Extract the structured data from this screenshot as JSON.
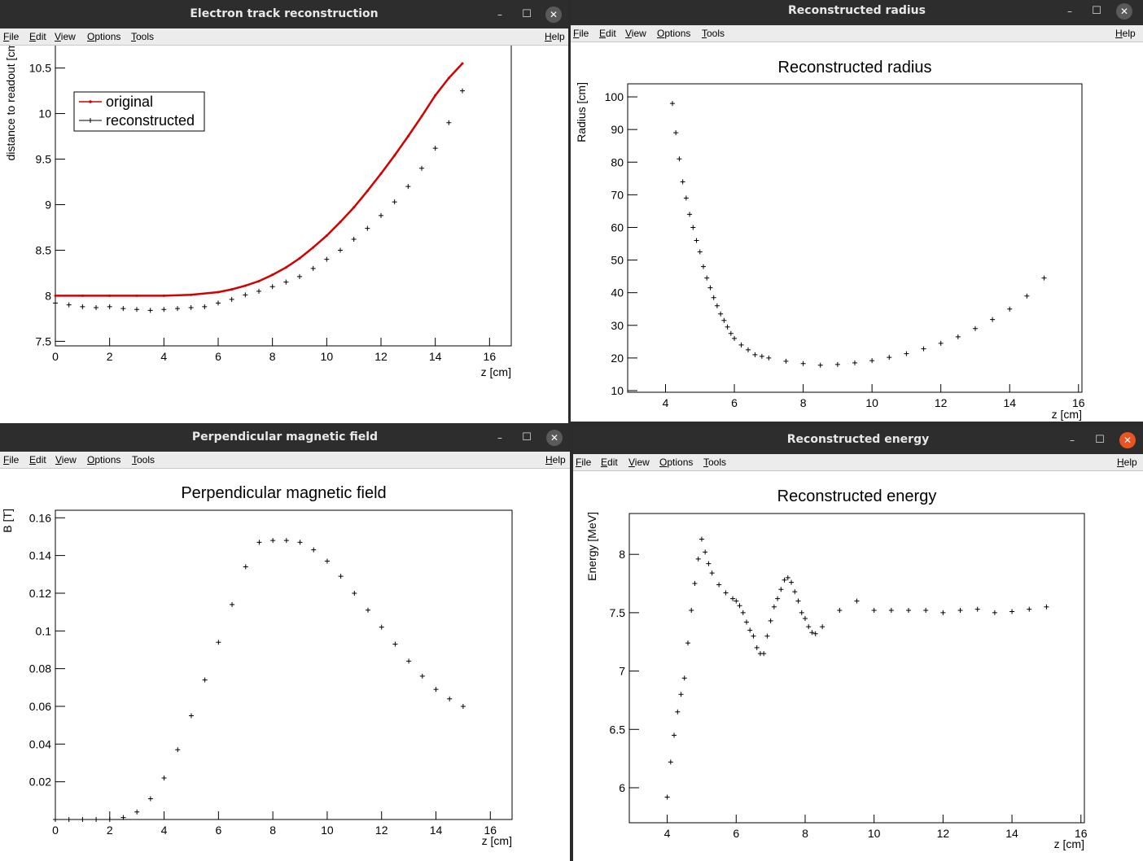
{
  "menu": {
    "file": "File",
    "edit": "Edit",
    "view": "View",
    "options": "Options",
    "tools": "Tools",
    "help": "Help"
  },
  "windows": [
    {
      "id": "track",
      "title": "Electron track reconstruction"
    },
    {
      "id": "radius",
      "title": "Reconstructed radius"
    },
    {
      "id": "field",
      "title": "Perpendicular magnetic field"
    },
    {
      "id": "energy",
      "title": "Reconstructed energy"
    }
  ],
  "chart_data": [
    {
      "id": "track",
      "type": "scatter",
      "title": "Electron track reconstruction",
      "xlabel": "z [cm]",
      "ylabel": "distance to readout [cm]",
      "xlim": [
        0,
        16.8
      ],
      "ylim": [
        7.45,
        10.8
      ],
      "xticks": [
        0,
        2,
        4,
        6,
        8,
        10,
        12,
        14,
        16
      ],
      "yticks": [
        7.5,
        8,
        8.5,
        9,
        9.5,
        10,
        10.5
      ],
      "legend": {
        "position": "top-left",
        "entries": [
          "original",
          "reconstructed"
        ]
      },
      "series": [
        {
          "name": "original",
          "color": "#d40000",
          "x": [
            0,
            1,
            2,
            3,
            4,
            5,
            6,
            6.5,
            7,
            7.5,
            8,
            8.5,
            9,
            9.5,
            10,
            10.5,
            11,
            11.5,
            12,
            12.5,
            13,
            13.5,
            14,
            14.5,
            15
          ],
          "y": [
            8,
            8,
            8,
            8,
            8,
            8.01,
            8.04,
            8.07,
            8.11,
            8.16,
            8.23,
            8.31,
            8.41,
            8.53,
            8.66,
            8.81,
            8.97,
            9.15,
            9.34,
            9.54,
            9.75,
            9.97,
            10.2,
            10.39,
            10.55
          ]
        },
        {
          "name": "reconstructed",
          "color": "#000000",
          "x": [
            0,
            0.5,
            1,
            1.5,
            2,
            2.5,
            3,
            3.5,
            4,
            4.5,
            5,
            5.5,
            6,
            6.5,
            7,
            7.5,
            8,
            8.5,
            9,
            9.5,
            10,
            10.5,
            11,
            11.5,
            12,
            12.5,
            13,
            13.5,
            14,
            14.5,
            15
          ],
          "y": [
            7.92,
            7.9,
            7.88,
            7.87,
            7.88,
            7.86,
            7.85,
            7.84,
            7.85,
            7.86,
            7.87,
            7.88,
            7.92,
            7.96,
            8.01,
            8.05,
            8.1,
            8.15,
            8.21,
            8.3,
            8.4,
            8.5,
            8.62,
            8.74,
            8.88,
            9.03,
            9.2,
            9.4,
            9.62,
            9.9,
            10.25
          ]
        }
      ]
    },
    {
      "id": "radius",
      "type": "scatter",
      "title": "Reconstructed radius",
      "xlabel": "z [cm]",
      "ylabel": "Radius [cm]",
      "xlim": [
        2.9,
        16.1
      ],
      "ylim": [
        9.5,
        104
      ],
      "xticks": [
        4,
        6,
        8,
        10,
        12,
        14,
        16
      ],
      "yticks": [
        10,
        20,
        30,
        40,
        50,
        60,
        70,
        80,
        90,
        100
      ],
      "series": [
        {
          "name": "",
          "color": "#000000",
          "x": [
            4.2,
            4.3,
            4.4,
            4.5,
            4.6,
            4.7,
            4.8,
            4.9,
            5,
            5.1,
            5.2,
            5.3,
            5.4,
            5.5,
            5.6,
            5.7,
            5.8,
            5.9,
            6,
            6.2,
            6.4,
            6.6,
            6.8,
            7,
            7.5,
            8,
            8.5,
            9,
            9.5,
            10,
            10.5,
            11,
            11.5,
            12,
            12.5,
            13,
            13.5,
            14,
            14.5,
            15
          ],
          "y": [
            98,
            89,
            81,
            74,
            69,
            64,
            60,
            56,
            52.5,
            48,
            44.5,
            41.5,
            38.5,
            36,
            33.5,
            31.5,
            29.5,
            27.5,
            26,
            24,
            22.5,
            21,
            20.5,
            20,
            19,
            18.3,
            17.8,
            18,
            18.5,
            19.2,
            20.2,
            21.3,
            22.8,
            24.5,
            26.5,
            29,
            31.8,
            35,
            39,
            44.5
          ]
        }
      ]
    },
    {
      "id": "field",
      "type": "scatter",
      "title": "Perpendicular magnetic field",
      "xlabel": "z [cm]",
      "ylabel": "B [T]",
      "xlim": [
        0,
        16.8
      ],
      "ylim": [
        0,
        0.164
      ],
      "xticks": [
        0,
        2,
        4,
        6,
        8,
        10,
        12,
        14,
        16
      ],
      "yticks": [
        0.02,
        0.04,
        0.06,
        0.08,
        0.1,
        0.12,
        0.14,
        0.16
      ],
      "series": [
        {
          "name": "",
          "color": "#000000",
          "x": [
            0,
            0.5,
            1,
            1.5,
            2,
            2.5,
            3,
            3.5,
            4,
            4.5,
            5,
            5.5,
            6,
            6.5,
            7,
            7.5,
            8,
            8.5,
            9,
            9.5,
            10,
            10.5,
            11,
            11.5,
            12,
            12.5,
            13,
            13.5,
            14,
            14.5,
            15
          ],
          "y": [
            0,
            0,
            0,
            0,
            0,
            0.001,
            0.004,
            0.011,
            0.022,
            0.037,
            0.055,
            0.074,
            0.094,
            0.114,
            0.134,
            0.147,
            0.148,
            0.148,
            0.147,
            0.143,
            0.137,
            0.129,
            0.12,
            0.111,
            0.102,
            0.093,
            0.084,
            0.076,
            0.069,
            0.064,
            0.06
          ]
        }
      ]
    },
    {
      "id": "energy",
      "type": "scatter",
      "title": "Reconstructed energy",
      "xlabel": "z [cm]",
      "ylabel": "Energy [MeV]",
      "xlim": [
        2.9,
        16.1
      ],
      "ylim": [
        5.7,
        8.35
      ],
      "xticks": [
        4,
        6,
        8,
        10,
        12,
        14,
        16
      ],
      "yticks": [
        6,
        6.5,
        7,
        7.5,
        8
      ],
      "series": [
        {
          "name": "",
          "color": "#000000",
          "x": [
            4,
            4.1,
            4.2,
            4.3,
            4.4,
            4.5,
            4.6,
            4.7,
            4.8,
            4.9,
            5,
            5.1,
            5.2,
            5.3,
            5.5,
            5.7,
            5.9,
            6,
            6.1,
            6.2,
            6.3,
            6.4,
            6.5,
            6.6,
            6.7,
            6.8,
            6.9,
            7,
            7.1,
            7.2,
            7.3,
            7.4,
            7.5,
            7.6,
            7.7,
            7.8,
            7.9,
            8,
            8.1,
            8.2,
            8.3,
            8.5,
            9,
            9.5,
            10,
            10.5,
            11,
            11.5,
            12,
            12.5,
            13,
            13.5,
            14,
            14.5,
            15
          ],
          "y": [
            5.92,
            6.22,
            6.45,
            6.65,
            6.8,
            6.94,
            7.24,
            7.52,
            7.75,
            7.96,
            8.13,
            8.02,
            7.92,
            7.84,
            7.74,
            7.67,
            7.62,
            7.6,
            7.56,
            7.5,
            7.42,
            7.35,
            7.3,
            7.2,
            7.15,
            7.15,
            7.3,
            7.43,
            7.55,
            7.62,
            7.7,
            7.78,
            7.8,
            7.76,
            7.68,
            7.6,
            7.5,
            7.45,
            7.38,
            7.33,
            7.32,
            7.38,
            7.52,
            7.6,
            7.52,
            7.52,
            7.52,
            7.52,
            7.5,
            7.52,
            7.53,
            7.5,
            7.51,
            7.53,
            7.55
          ]
        }
      ]
    }
  ]
}
